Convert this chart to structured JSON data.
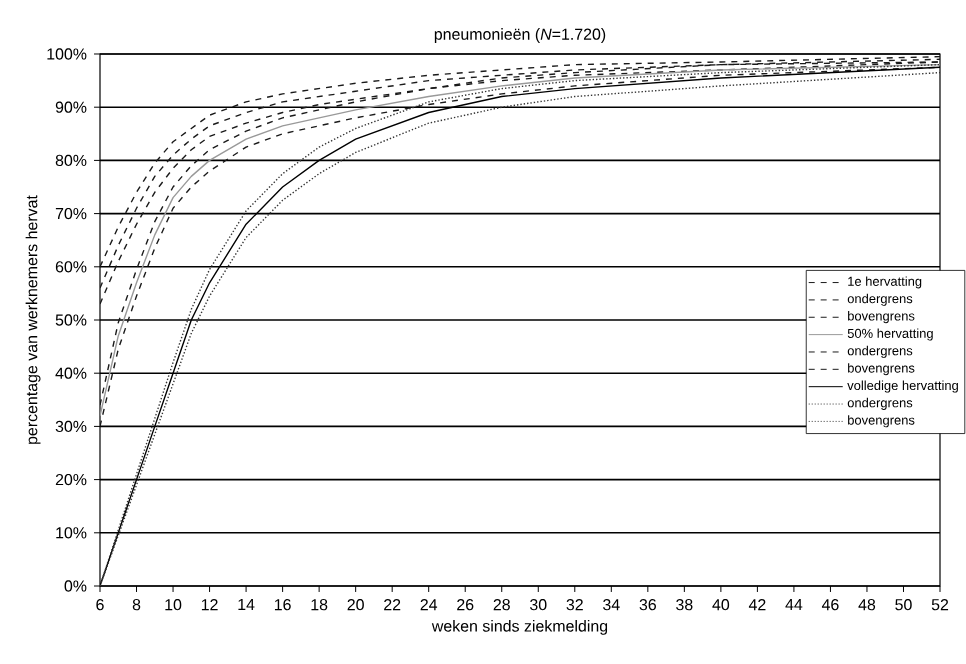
{
  "chart_data": {
    "type": "line",
    "title": "pneumonieën (*N*=1.720)",
    "xlabel": "weken sinds ziekmelding",
    "ylabel": "percentage van werknemers hervat",
    "x": [
      6,
      7,
      8,
      9,
      10,
      11,
      12,
      14,
      16,
      18,
      20,
      24,
      28,
      32,
      40,
      52
    ],
    "series": [
      {
        "name": "1e hervatting",
        "color": "#1a1a1a",
        "line_style": "dashed",
        "values": [
          56,
          64,
          71,
          77,
          81,
          84,
          86.5,
          89,
          91,
          92,
          93,
          95,
          96,
          97,
          98,
          99
        ]
      },
      {
        "name": "ondergrens",
        "color": "#1a1a1a",
        "line_style": "dashed",
        "values": [
          53,
          61,
          68,
          74,
          78.5,
          82,
          84.5,
          87,
          89,
          90.5,
          91.5,
          93.5,
          95,
          96,
          97,
          98.5
        ]
      },
      {
        "name": "bovengrens",
        "color": "#1a1a1a",
        "line_style": "dashed",
        "values": [
          60,
          67.5,
          74,
          79.5,
          83.5,
          86,
          88.5,
          91,
          92.5,
          93.5,
          94.5,
          96,
          97,
          98,
          98.5,
          99.5
        ]
      },
      {
        "name": "50% hervatting",
        "color": "#999999",
        "line_style": "solid",
        "values": [
          32,
          47,
          57,
          66,
          73,
          77,
          80,
          84,
          86.5,
          88,
          89.5,
          92,
          94,
          95.5,
          97,
          98
        ]
      },
      {
        "name": "ondergrens",
        "color": "#1a1a1a",
        "line_style": "dashed",
        "values": [
          30,
          44.5,
          54.5,
          63.5,
          71,
          75,
          78,
          82.5,
          85,
          86.5,
          88,
          90.5,
          92.5,
          94,
          96,
          97.5
        ]
      },
      {
        "name": "bovengrens",
        "color": "#1a1a1a",
        "line_style": "dashed",
        "values": [
          34,
          49.5,
          59.5,
          68.5,
          75,
          79,
          82,
          85.5,
          88,
          89.5,
          91,
          93.5,
          95.5,
          96.5,
          98,
          98.5
        ]
      },
      {
        "name": "volledige hervatting",
        "color": "#000000",
        "line_style": "solid",
        "values": [
          0,
          10,
          20,
          30,
          40,
          50,
          57,
          68,
          75,
          80,
          84,
          89,
          92,
          93.5,
          95.5,
          97.5
        ]
      },
      {
        "name": "ondergrens",
        "color": "#333333",
        "line_style": "dotted",
        "values": [
          0,
          9.5,
          19,
          28.5,
          38,
          47.5,
          54.5,
          65.5,
          72.5,
          77.5,
          81.5,
          87,
          90,
          92,
          94,
          96.5
        ]
      },
      {
        "name": "bovengrens",
        "color": "#333333",
        "line_style": "dotted",
        "values": [
          0,
          10.5,
          21,
          31.5,
          42,
          52,
          59.5,
          70.5,
          77.5,
          82.5,
          86,
          91,
          93.5,
          95,
          96.5,
          98
        ]
      }
    ],
    "xlim": [
      6,
      52
    ],
    "xticks": [
      6,
      8,
      10,
      12,
      14,
      16,
      18,
      20,
      22,
      24,
      26,
      28,
      30,
      32,
      34,
      36,
      38,
      40,
      42,
      44,
      46,
      48,
      50,
      52
    ],
    "ylim": [
      0,
      100
    ],
    "yticks": [
      {
        "value": 0,
        "label": "0%"
      },
      {
        "value": 10,
        "label": "10%"
      },
      {
        "value": 20,
        "label": "20%"
      },
      {
        "value": 30,
        "label": "30%"
      },
      {
        "value": 40,
        "label": "40%"
      },
      {
        "value": 50,
        "label": "50%"
      },
      {
        "value": 60,
        "label": "60%"
      },
      {
        "value": 70,
        "label": "70%"
      },
      {
        "value": 80,
        "label": "80%"
      },
      {
        "value": 90,
        "label": "90%"
      },
      {
        "value": 100,
        "label": "100%"
      }
    ],
    "grid": "y",
    "legend": "right",
    "marker": "none"
  }
}
